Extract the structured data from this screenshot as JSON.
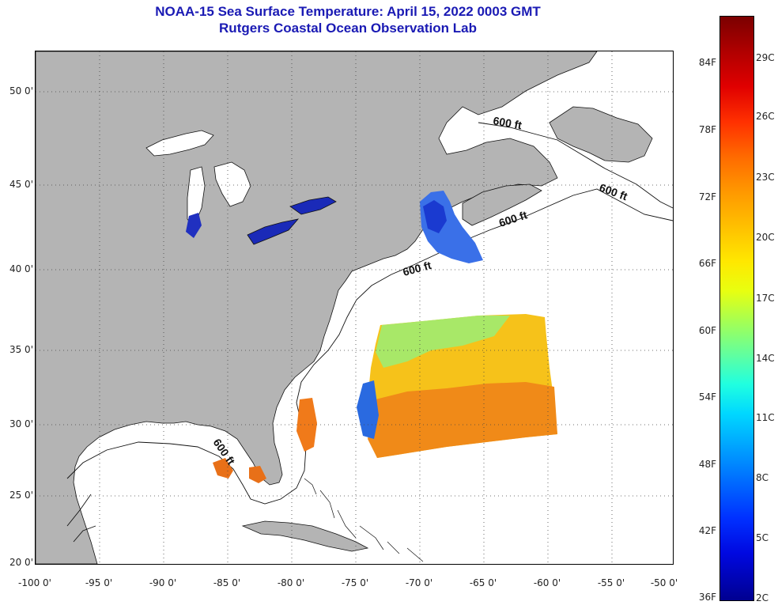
{
  "header": {
    "title": "NOAA-15 Sea Surface Temperature:  April 15, 2022 0003 GMT",
    "subtitle": "Rutgers Coastal Ocean Observation Lab"
  },
  "axes": {
    "lat_labels": [
      "50 0'",
      "45 0'",
      "40 0'",
      "35 0'",
      "30 0'",
      "25 0'",
      "20 0'"
    ],
    "lon_labels": [
      "-100 0'",
      "-95 0'",
      "-90 0'",
      "-85 0'",
      "-80 0'",
      "-75 0'",
      "-70 0'",
      "-65 0'",
      "-60 0'",
      "-55 0'",
      "-50 0'"
    ]
  },
  "contour": {
    "label": "600 ft"
  },
  "colorbar": {
    "fahrenheit": [
      "84F",
      "78F",
      "72F",
      "66F",
      "60F",
      "54F",
      "48F",
      "42F",
      "36F"
    ],
    "celsius": [
      "29C",
      "26C",
      "23C",
      "20C",
      "17C",
      "14C",
      "11C",
      "8C",
      "5C",
      "2C"
    ]
  },
  "colors": {
    "title": "#1a1ab4",
    "land": "#b4b4b4",
    "ocean_nodata": "#ffffff",
    "lakes": "#1a2ab8"
  }
}
